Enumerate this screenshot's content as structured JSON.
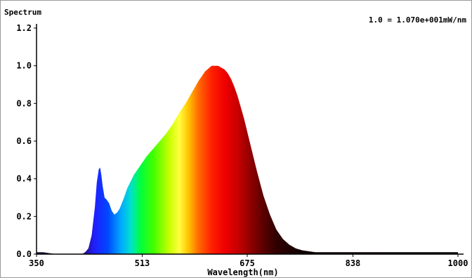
{
  "chart_data": {
    "type": "area",
    "title": "Spectrum",
    "annotation": "1.0 = 1.070e+001mW/nm",
    "xlabel": "Wavelength(nm)",
    "ylabel": "",
    "xlim": [
      350,
      1000
    ],
    "ylim": [
      0,
      1.2
    ],
    "x_ticks": [
      "350",
      "513",
      "675",
      "838",
      "1000"
    ],
    "y_ticks": [
      "0.0",
      "0.2",
      "0.4",
      "0.6",
      "0.8",
      "1.0",
      "1.2"
    ],
    "grid": false,
    "fill": "visible-spectrum color gradient",
    "series": [
      {
        "x": [
          350,
          360,
          380,
          400,
          420,
          425,
          430,
          435,
          440,
          443,
          446,
          448,
          450,
          452,
          455,
          458,
          462,
          466,
          470,
          474,
          478,
          485,
          490,
          500,
          510,
          520,
          530,
          540,
          550,
          560,
          570,
          580,
          590,
          600,
          610,
          620,
          630,
          640,
          645,
          650,
          655,
          660,
          670,
          680,
          690,
          700,
          710,
          720,
          730,
          740,
          750,
          760,
          780,
          800,
          850,
          900,
          950,
          1000
        ],
        "y": [
          0.01,
          0.01,
          0.0,
          0.0,
          0.0,
          0.01,
          0.03,
          0.1,
          0.25,
          0.38,
          0.45,
          0.46,
          0.42,
          0.36,
          0.3,
          0.29,
          0.27,
          0.23,
          0.21,
          0.22,
          0.24,
          0.3,
          0.35,
          0.42,
          0.47,
          0.52,
          0.56,
          0.6,
          0.64,
          0.69,
          0.75,
          0.8,
          0.86,
          0.92,
          0.97,
          1.0,
          1.0,
          0.98,
          0.96,
          0.93,
          0.89,
          0.84,
          0.72,
          0.58,
          0.44,
          0.31,
          0.21,
          0.13,
          0.08,
          0.05,
          0.03,
          0.02,
          0.01,
          0.01,
          0.01,
          0.01,
          0.01,
          0.01
        ]
      }
    ]
  }
}
